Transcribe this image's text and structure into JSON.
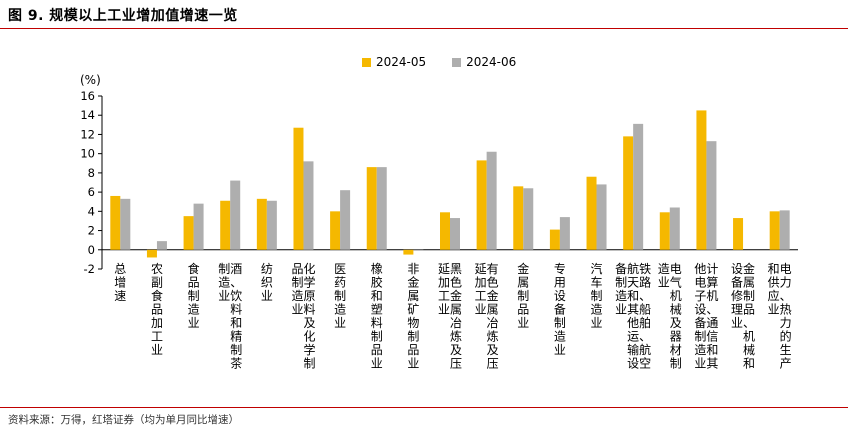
{
  "figure": {
    "title": "图 9. 规模以上工业增加值增速一览",
    "source": "资料来源：万得，红塔证券（均为单月同比增速）"
  },
  "colors": {
    "series_a": "#f5b800",
    "series_b": "#aeaeae",
    "rule": "#c00000"
  },
  "chart_data": {
    "type": "bar",
    "ylabel": "(%)",
    "ylim": [
      -2,
      16
    ],
    "yticks": [
      -2,
      0,
      2,
      4,
      6,
      8,
      10,
      12,
      14,
      16
    ],
    "legend_position": "top-center",
    "categories": [
      "总增速",
      "农副食品加工业",
      "食品制造业",
      "酒、饮料和精制茶制造业",
      "纺织业",
      "化学原料及化学制品制造业",
      "医药制造业",
      "橡胶和塑料制品业",
      "非金属矿物制品业",
      "黑色金属冶炼及压延加工业",
      "有色金属冶炼及压延加工业",
      "金属制品业",
      "专用设备制造业",
      "汽车制造业",
      "铁路、船舶、航空航天和其他运输设备制造业",
      "电气机械及器材制造业",
      "计算机、通信和其他电子设备制造业",
      "金属制品、机械和设备修理业",
      "电力、热力的生产和供应业"
    ],
    "series": [
      {
        "name": "2024-05",
        "values": [
          5.6,
          -0.8,
          3.5,
          5.1,
          5.3,
          12.7,
          4.0,
          8.6,
          -0.5,
          3.9,
          9.3,
          6.6,
          2.1,
          7.6,
          11.8,
          3.9,
          14.5,
          3.3,
          4.0
        ]
      },
      {
        "name": "2024-06",
        "values": [
          5.3,
          0.9,
          4.8,
          7.2,
          5.1,
          9.2,
          6.2,
          8.6,
          -0.1,
          3.3,
          10.2,
          6.4,
          3.4,
          6.8,
          13.1,
          4.4,
          11.3,
          null,
          4.1
        ]
      }
    ]
  }
}
